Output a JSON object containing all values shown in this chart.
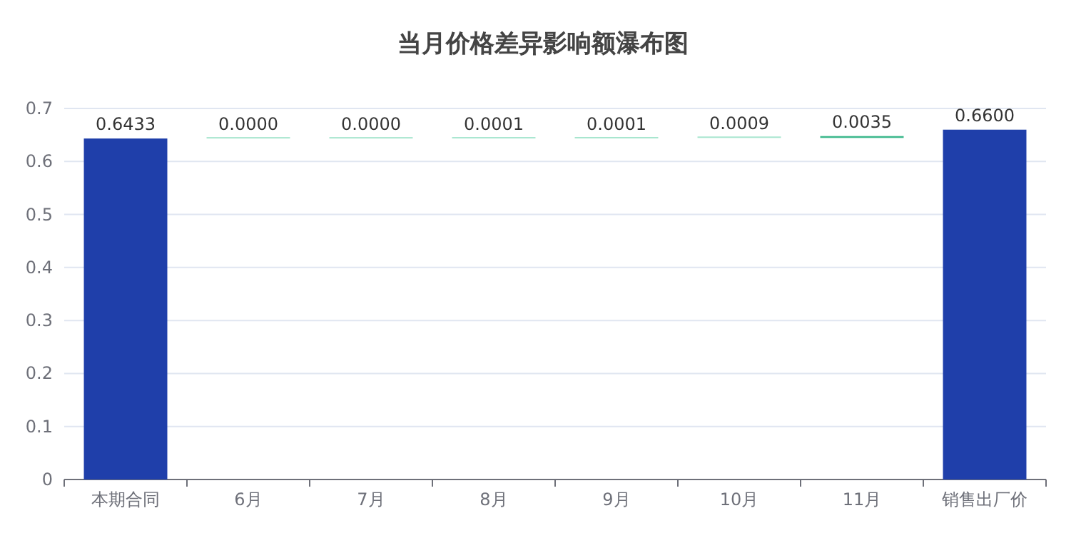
{
  "chart_data": {
    "type": "bar",
    "title": "当月价格差异影响额瀑布图",
    "categories": [
      "本期合同",
      "6月",
      "7月",
      "8月",
      "9月",
      "10月",
      "11月",
      "销售出厂价"
    ],
    "values": [
      0.6433,
      0.0,
      0.0,
      0.0001,
      0.0001,
      0.0009,
      0.0035,
      0.66
    ],
    "base": [
      0,
      0.6433,
      0.6433,
      0.6433,
      0.6434,
      0.6435,
      0.6444,
      0
    ],
    "colors": [
      "#1f3faa",
      "#a8e6cf",
      "#a8e6cf",
      "#a8e6cf",
      "#a8e6cf",
      "#a8e6cf",
      "#3cb88c",
      "#1f3faa"
    ],
    "value_labels": [
      "0.6433",
      "0.0000",
      "0.0000",
      "0.0001",
      "0.0001",
      "0.0009",
      "0.0035",
      "0.6600"
    ],
    "ylim": [
      0,
      0.7
    ],
    "yticks": [
      0,
      0.1,
      0.2,
      0.3,
      0.4,
      0.5,
      0.6,
      0.7
    ],
    "grid": "y"
  }
}
